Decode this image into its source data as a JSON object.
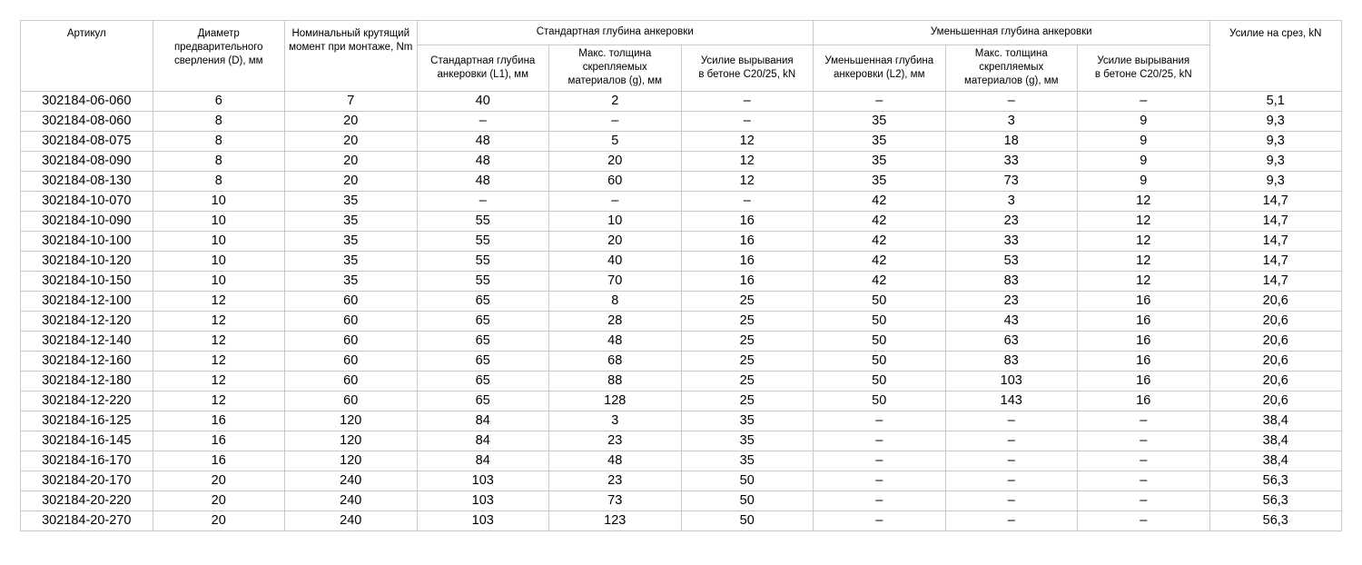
{
  "table": {
    "headers": {
      "article": "Артикул",
      "diameter": "Диаметр предварительного\nсверления (D), мм",
      "torque": "Номинальный крутящий\nмомент при монтаже, Nm",
      "standard_group": "Стандартная глубина анкеровки",
      "standard_depth": "Стандартная глубина\nанкеровки (L1), мм",
      "standard_thickness": "Макс. толщина скрепляемых\nматериалов (g), мм",
      "standard_pullout": "Усилие вырывания\nв бетоне C20/25, kN",
      "reduced_group": "Уменьшенная глубина анкеровки",
      "reduced_depth": "Уменьшенная глубина\nанкеровки (L2), мм",
      "reduced_thickness": "Макс. толщина скрепляемых\nматериалов (g), мм",
      "reduced_pullout": "Усилие вырывания\nв бетоне C20/25, kN",
      "shear": "Усилие на срез, kN"
    },
    "field_names": [
      "article",
      "drill-diameter",
      "torque",
      "standard-depth-l1",
      "standard-max-thickness",
      "standard-pullout",
      "reduced-depth-l2",
      "reduced-max-thickness",
      "reduced-pullout",
      "shear"
    ],
    "rows": [
      [
        "302184-06-060",
        "6",
        "7",
        "40",
        "2",
        "–",
        "–",
        "–",
        "–",
        "5,1"
      ],
      [
        "302184-08-060",
        "8",
        "20",
        "–",
        "–",
        "–",
        "35",
        "3",
        "9",
        "9,3"
      ],
      [
        "302184-08-075",
        "8",
        "20",
        "48",
        "5",
        "12",
        "35",
        "18",
        "9",
        "9,3"
      ],
      [
        "302184-08-090",
        "8",
        "20",
        "48",
        "20",
        "12",
        "35",
        "33",
        "9",
        "9,3"
      ],
      [
        "302184-08-130",
        "8",
        "20",
        "48",
        "60",
        "12",
        "35",
        "73",
        "9",
        "9,3"
      ],
      [
        "302184-10-070",
        "10",
        "35",
        "–",
        "–",
        "–",
        "42",
        "3",
        "12",
        "14,7"
      ],
      [
        "302184-10-090",
        "10",
        "35",
        "55",
        "10",
        "16",
        "42",
        "23",
        "12",
        "14,7"
      ],
      [
        "302184-10-100",
        "10",
        "35",
        "55",
        "20",
        "16",
        "42",
        "33",
        "12",
        "14,7"
      ],
      [
        "302184-10-120",
        "10",
        "35",
        "55",
        "40",
        "16",
        "42",
        "53",
        "12",
        "14,7"
      ],
      [
        "302184-10-150",
        "10",
        "35",
        "55",
        "70",
        "16",
        "42",
        "83",
        "12",
        "14,7"
      ],
      [
        "302184-12-100",
        "12",
        "60",
        "65",
        "8",
        "25",
        "50",
        "23",
        "16",
        "20,6"
      ],
      [
        "302184-12-120",
        "12",
        "60",
        "65",
        "28",
        "25",
        "50",
        "43",
        "16",
        "20,6"
      ],
      [
        "302184-12-140",
        "12",
        "60",
        "65",
        "48",
        "25",
        "50",
        "63",
        "16",
        "20,6"
      ],
      [
        "302184-12-160",
        "12",
        "60",
        "65",
        "68",
        "25",
        "50",
        "83",
        "16",
        "20,6"
      ],
      [
        "302184-12-180",
        "12",
        "60",
        "65",
        "88",
        "25",
        "50",
        "103",
        "16",
        "20,6"
      ],
      [
        "302184-12-220",
        "12",
        "60",
        "65",
        "128",
        "25",
        "50",
        "143",
        "16",
        "20,6"
      ],
      [
        "302184-16-125",
        "16",
        "120",
        "84",
        "3",
        "35",
        "–",
        "–",
        "–",
        "38,4"
      ],
      [
        "302184-16-145",
        "16",
        "120",
        "84",
        "23",
        "35",
        "–",
        "–",
        "–",
        "38,4"
      ],
      [
        "302184-16-170",
        "16",
        "120",
        "84",
        "48",
        "35",
        "–",
        "–",
        "–",
        "38,4"
      ],
      [
        "302184-20-170",
        "20",
        "240",
        "103",
        "23",
        "50",
        "–",
        "–",
        "–",
        "56,3"
      ],
      [
        "302184-20-220",
        "20",
        "240",
        "103",
        "73",
        "50",
        "–",
        "–",
        "–",
        "56,3"
      ],
      [
        "302184-20-270",
        "20",
        "240",
        "103",
        "123",
        "50",
        "–",
        "–",
        "–",
        "56,3"
      ]
    ],
    "colors": {
      "border": "#c9c9c9",
      "text": "#000000",
      "background": "#ffffff"
    }
  }
}
